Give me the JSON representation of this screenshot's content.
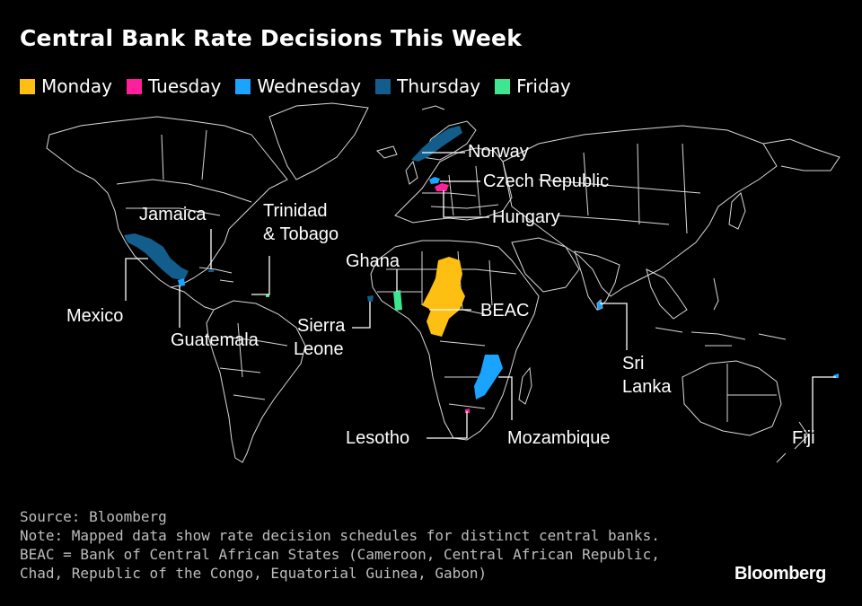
{
  "title": "Central Bank Rate Decisions This Week",
  "legend": [
    {
      "label": "Monday",
      "color": "#fdbf11"
    },
    {
      "label": "Tuesday",
      "color": "#ff1e9b"
    },
    {
      "label": "Wednesday",
      "color": "#1aa3ff"
    },
    {
      "label": "Thursday",
      "color": "#135d8c"
    },
    {
      "label": "Friday",
      "color": "#3ee68f"
    }
  ],
  "countries": [
    {
      "label": "Norway",
      "day": "Thursday"
    },
    {
      "label": "Czech Republic",
      "day": "Wednesday"
    },
    {
      "label": "Hungary",
      "day": "Tuesday"
    },
    {
      "label": "Jamaica",
      "day": "Thursday"
    },
    {
      "label": "Trinidad & Tobago",
      "day": "Friday"
    },
    {
      "label": "Mexico",
      "day": "Thursday"
    },
    {
      "label": "Guatemala",
      "day": "Wednesday"
    },
    {
      "label": "Ghana",
      "day": "Friday"
    },
    {
      "label": "Sierra Leone",
      "day": "Thursday"
    },
    {
      "label": "BEAC",
      "day": "Monday"
    },
    {
      "label": "Lesotho",
      "day": "Tuesday"
    },
    {
      "label": "Mozambique",
      "day": "Wednesday"
    },
    {
      "label": "Sri Lanka",
      "day": "Wednesday"
    },
    {
      "label": "Fiji",
      "day": "Wednesday"
    }
  ],
  "labels": {
    "norway": "Norway",
    "czech": "Czech Republic",
    "hungary": "Hungary",
    "jamaica": "Jamaica",
    "trinidad_1": "Trinidad",
    "trinidad_2": "& Tobago",
    "mexico": "Mexico",
    "guatemala": "Guatemala",
    "ghana": "Ghana",
    "sierra_1": "Sierra",
    "sierra_2": "Leone",
    "beac": "BEAC",
    "lesotho": "Lesotho",
    "mozambique": "Mozambique",
    "srilanka_1": "Sri",
    "srilanka_2": "Lanka",
    "fiji": "Fiji"
  },
  "footer": {
    "source": "Source: Bloomberg",
    "note": "Note: Mapped data show rate decision schedules for distinct central banks.",
    "beac_1": "BEAC = Bank of Central African States (Cameroon, Central African Republic,",
    "beac_2": "Chad, Republic of the Congo, Equatorial Guinea, Gabon)"
  },
  "logo": "Bloomberg"
}
